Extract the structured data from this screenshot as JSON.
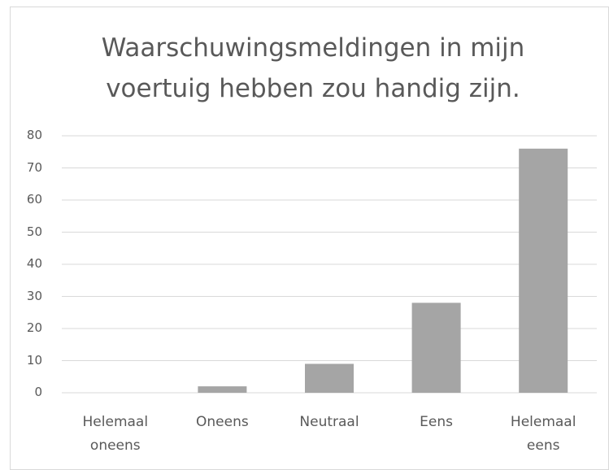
{
  "chart_data": {
    "type": "bar",
    "title": "Waarschuwingsmeldingen in mijn voertuig hebben zou handig zijn.",
    "categories": [
      "Helemaal oneens",
      "Oneens",
      "Neutraal",
      "Eens",
      "Helemaal eens"
    ],
    "values": [
      0,
      2,
      9,
      28,
      76
    ],
    "color": "#a5a5a5",
    "ylim": [
      0,
      80
    ],
    "yticks": [
      0,
      10,
      20,
      30,
      40,
      50,
      60,
      70,
      80
    ],
    "grid": true
  }
}
